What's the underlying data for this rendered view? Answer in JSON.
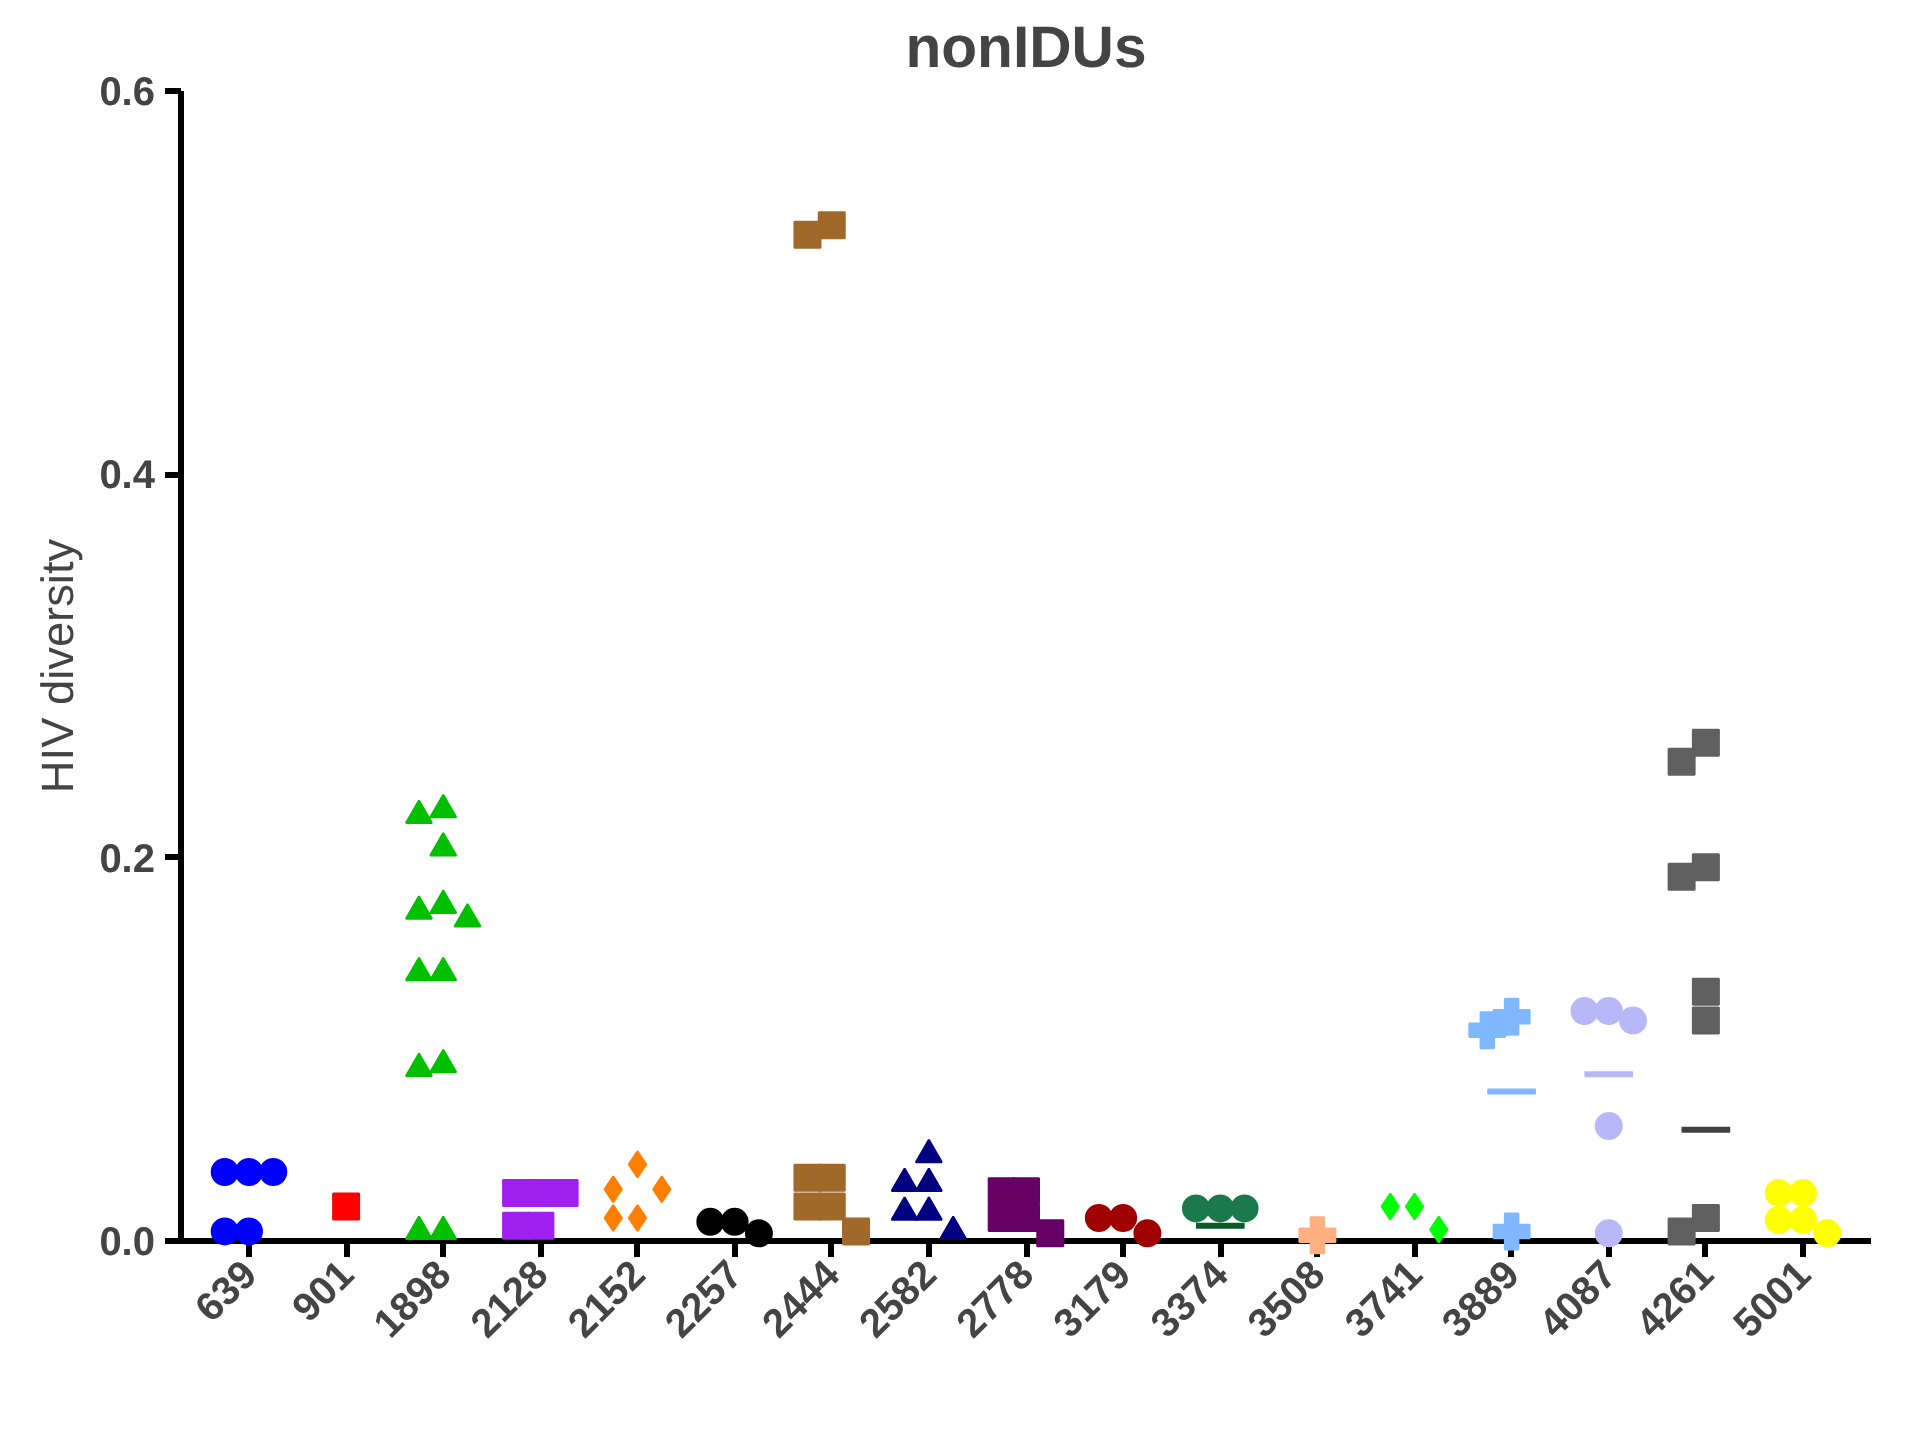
{
  "chart_data": {
    "type": "scatter",
    "title": "nonIDUs",
    "ylabel": "HIV diversity",
    "categories": [
      "639",
      "901",
      "1898",
      "2128",
      "2152",
      "2257",
      "2444",
      "2582",
      "2778",
      "3179",
      "3374",
      "3508",
      "3741",
      "3889",
      "4087",
      "4261",
      "5001"
    ],
    "ylim": [
      0,
      0.6
    ],
    "yticks": [
      {
        "value": 0,
        "label": "0.0"
      },
      {
        "value": 0.2,
        "label": "0.2"
      },
      {
        "value": 0.4,
        "label": "0.4"
      },
      {
        "value": 0.6,
        "label": "0.6"
      }
    ],
    "grid": false,
    "series": [
      {
        "marker": "circle",
        "values": [
          0.036,
          null,
          null,
          null,
          null,
          0.01,
          null,
          null,
          null,
          0.012,
          0.017,
          null,
          null,
          null,
          0.12,
          null,
          0.025
        ],
        "colors": [
          "#0000ff",
          null,
          null,
          null,
          null,
          "#000000",
          null,
          null,
          null,
          "#a00000",
          "#1a7a4c",
          null,
          null,
          null,
          "#b8b8f8",
          null,
          "#ffff00"
        ]
      },
      {
        "marker": "circle",
        "values": [
          0.036,
          null,
          null,
          null,
          null,
          0.01,
          null,
          null,
          null,
          0.012,
          0.017,
          null,
          null,
          null,
          0.12,
          null,
          0.025
        ],
        "colors": [
          "#0000ff",
          null,
          null,
          null,
          null,
          "#000000",
          null,
          null,
          null,
          "#a00000",
          "#1a7a4c",
          null,
          null,
          null,
          "#b8b8f8",
          null,
          "#ffff00"
        ]
      },
      {
        "marker": "circle",
        "values": [
          0.036,
          null,
          null,
          null,
          null,
          0.004,
          null,
          null,
          null,
          0.004,
          0.017,
          null,
          null,
          null,
          0.115,
          null,
          0.011
        ],
        "colors": [
          "#0000ff",
          null,
          null,
          null,
          null,
          "#000000",
          null,
          null,
          null,
          "#a00000",
          "#1a7a4c",
          null,
          null,
          null,
          "#b8b8f8",
          null,
          "#ffff00"
        ]
      },
      {
        "marker": "circle",
        "values": [
          0.005,
          null,
          null,
          null,
          null,
          null,
          null,
          null,
          null,
          null,
          null,
          null,
          null,
          null,
          0.06,
          null,
          0.011
        ],
        "colors": [
          "#0000ff",
          null,
          null,
          null,
          null,
          null,
          null,
          null,
          null,
          null,
          null,
          null,
          null,
          null,
          "#b8b8f8",
          null,
          "#ffff00"
        ]
      },
      {
        "marker": "circle",
        "values": [
          0.005,
          null,
          null,
          null,
          null,
          null,
          null,
          null,
          null,
          null,
          null,
          null,
          null,
          null,
          0.004,
          null,
          0.004
        ],
        "colors": [
          "#0000ff",
          null,
          null,
          null,
          null,
          null,
          null,
          null,
          null,
          null,
          null,
          null,
          null,
          null,
          "#b8b8f8",
          null,
          "#ffff00"
        ]
      },
      {
        "marker": "square",
        "values": [
          null,
          0.018,
          null,
          0.025,
          null,
          null,
          0.53,
          null,
          0.026,
          null,
          null,
          null,
          null,
          null,
          null,
          0.26,
          null
        ],
        "colors": [
          null,
          "#ff0000",
          null,
          "#a020f0",
          null,
          null,
          "#a0692a",
          null,
          "#660066",
          null,
          null,
          null,
          null,
          null,
          null,
          "#606060",
          null
        ]
      },
      {
        "marker": "square",
        "values": [
          null,
          null,
          null,
          0.025,
          null,
          null,
          0.525,
          null,
          0.026,
          null,
          null,
          null,
          null,
          null,
          null,
          0.25,
          null
        ],
        "colors": [
          null,
          null,
          null,
          "#a020f0",
          null,
          null,
          "#a0692a",
          null,
          "#660066",
          null,
          null,
          null,
          null,
          null,
          null,
          "#606060",
          null
        ]
      },
      {
        "marker": "square",
        "values": [
          null,
          null,
          null,
          0.025,
          null,
          null,
          0.033,
          null,
          0.012,
          null,
          null,
          null,
          null,
          null,
          null,
          0.195,
          null
        ],
        "colors": [
          null,
          null,
          null,
          "#a020f0",
          null,
          null,
          "#a0692a",
          null,
          "#660066",
          null,
          null,
          null,
          null,
          null,
          null,
          "#606060",
          null
        ]
      },
      {
        "marker": "square",
        "values": [
          null,
          null,
          null,
          0.008,
          null,
          null,
          0.033,
          null,
          0.012,
          null,
          null,
          null,
          null,
          null,
          null,
          0.19,
          null
        ],
        "colors": [
          null,
          null,
          null,
          "#a020f0",
          null,
          null,
          "#a0692a",
          null,
          "#660066",
          null,
          null,
          null,
          null,
          null,
          null,
          "#606060",
          null
        ]
      },
      {
        "marker": "square",
        "values": [
          null,
          null,
          null,
          0.008,
          null,
          null,
          0.018,
          null,
          0.004,
          null,
          null,
          null,
          null,
          null,
          null,
          0.13,
          null
        ],
        "colors": [
          null,
          null,
          null,
          "#a020f0",
          null,
          null,
          "#a0692a",
          null,
          "#660066",
          null,
          null,
          null,
          null,
          null,
          null,
          "#606060",
          null
        ]
      },
      {
        "marker": "square",
        "values": [
          null,
          null,
          null,
          null,
          null,
          null,
          0.018,
          null,
          null,
          null,
          null,
          null,
          null,
          null,
          null,
          0.115,
          null
        ],
        "colors": [
          null,
          null,
          null,
          null,
          null,
          null,
          "#a0692a",
          null,
          null,
          null,
          null,
          null,
          null,
          null,
          null,
          "#606060",
          null
        ]
      },
      {
        "marker": "square",
        "values": [
          null,
          null,
          null,
          null,
          null,
          null,
          0.005,
          null,
          null,
          null,
          null,
          null,
          null,
          null,
          null,
          0.012,
          null
        ],
        "colors": [
          null,
          null,
          null,
          null,
          null,
          null,
          "#a0692a",
          null,
          null,
          null,
          null,
          null,
          null,
          null,
          null,
          "#606060",
          null
        ]
      },
      {
        "marker": "square",
        "values": [
          null,
          null,
          null,
          null,
          null,
          null,
          null,
          null,
          null,
          null,
          null,
          null,
          null,
          null,
          null,
          0.005,
          null
        ],
        "color": "#606060"
      },
      {
        "marker": "triangle",
        "values": [
          null,
          null,
          0.225,
          null,
          null,
          null,
          null,
          0.045,
          null,
          null,
          null,
          null,
          null,
          null,
          null,
          null,
          null
        ],
        "colors": [
          null,
          null,
          "#00c000",
          null,
          null,
          null,
          null,
          "#000080",
          null,
          null,
          null,
          null,
          null,
          null,
          null,
          null,
          null
        ]
      },
      {
        "marker": "triangle",
        "values": [
          null,
          null,
          0.222,
          null,
          null,
          null,
          null,
          0.03,
          null,
          null,
          null,
          null,
          null,
          null,
          null,
          null,
          null
        ],
        "colors": [
          null,
          null,
          "#00c000",
          null,
          null,
          null,
          null,
          "#000080",
          null,
          null,
          null,
          null,
          null,
          null,
          null,
          null,
          null
        ]
      },
      {
        "marker": "triangle",
        "values": [
          null,
          null,
          0.205,
          null,
          null,
          null,
          null,
          0.03,
          null,
          null,
          null,
          null,
          null,
          null,
          null,
          null,
          null
        ],
        "colors": [
          null,
          null,
          "#00c000",
          null,
          null,
          null,
          null,
          "#000080",
          null,
          null,
          null,
          null,
          null,
          null,
          null,
          null,
          null
        ]
      },
      {
        "marker": "triangle",
        "values": [
          null,
          null,
          0.175,
          null,
          null,
          null,
          null,
          0.015,
          null,
          null,
          null,
          null,
          null,
          null,
          null,
          null,
          null
        ],
        "colors": [
          null,
          null,
          "#00c000",
          null,
          null,
          null,
          null,
          "#000080",
          null,
          null,
          null,
          null,
          null,
          null,
          null,
          null,
          null
        ]
      },
      {
        "marker": "triangle",
        "values": [
          null,
          null,
          0.172,
          null,
          null,
          null,
          null,
          0.015,
          null,
          null,
          null,
          null,
          null,
          null,
          null,
          null,
          null
        ],
        "colors": [
          null,
          null,
          "#00c000",
          null,
          null,
          null,
          null,
          "#000080",
          null,
          null,
          null,
          null,
          null,
          null,
          null,
          null,
          null
        ]
      },
      {
        "marker": "triangle",
        "values": [
          null,
          null,
          0.168,
          null,
          null,
          null,
          null,
          0.005,
          null,
          null,
          null,
          null,
          null,
          null,
          null,
          null,
          null
        ],
        "colors": [
          null,
          null,
          "#00c000",
          null,
          null,
          null,
          null,
          "#000080",
          null,
          null,
          null,
          null,
          null,
          null,
          null,
          null,
          null
        ]
      },
      {
        "marker": "triangle",
        "values": [
          null,
          null,
          0.14,
          null,
          null,
          null,
          null,
          null,
          null,
          null,
          null,
          null,
          null,
          null,
          null,
          null,
          null
        ],
        "color": "#00c000"
      },
      {
        "marker": "triangle",
        "values": [
          null,
          null,
          0.14,
          null,
          null,
          null,
          null,
          null,
          null,
          null,
          null,
          null,
          null,
          null,
          null,
          null,
          null
        ],
        "color": "#00c000"
      },
      {
        "marker": "triangle",
        "values": [
          null,
          null,
          0.092,
          null,
          null,
          null,
          null,
          null,
          null,
          null,
          null,
          null,
          null,
          null,
          null,
          null,
          null
        ],
        "color": "#00c000"
      },
      {
        "marker": "triangle",
        "values": [
          null,
          null,
          0.09,
          null,
          null,
          null,
          null,
          null,
          null,
          null,
          null,
          null,
          null,
          null,
          null,
          null,
          null
        ],
        "color": "#00c000"
      },
      {
        "marker": "triangle",
        "values": [
          null,
          null,
          0.005,
          null,
          null,
          null,
          null,
          null,
          null,
          null,
          null,
          null,
          null,
          null,
          null,
          null,
          null
        ],
        "color": "#00c000"
      },
      {
        "marker": "triangle",
        "values": [
          null,
          null,
          0.005,
          null,
          null,
          null,
          null,
          null,
          null,
          null,
          null,
          null,
          null,
          null,
          null,
          null,
          null
        ],
        "color": "#00c000"
      },
      {
        "marker": "diamond",
        "values": [
          null,
          null,
          null,
          null,
          0.04,
          null,
          null,
          null,
          null,
          null,
          null,
          null,
          0.018,
          null,
          null,
          null,
          null
        ],
        "colors": [
          null,
          null,
          null,
          null,
          "#ff8000",
          null,
          null,
          null,
          null,
          null,
          null,
          null,
          "#00ff00",
          null,
          null,
          null,
          null
        ]
      },
      {
        "marker": "diamond",
        "values": [
          null,
          null,
          null,
          null,
          0.027,
          null,
          null,
          null,
          null,
          null,
          null,
          null,
          0.018,
          null,
          null,
          null,
          null
        ],
        "colors": [
          null,
          null,
          null,
          null,
          "#ff8000",
          null,
          null,
          null,
          null,
          null,
          null,
          null,
          "#00ff00",
          null,
          null,
          null,
          null
        ]
      },
      {
        "marker": "diamond",
        "values": [
          null,
          null,
          null,
          null,
          0.027,
          null,
          null,
          null,
          null,
          null,
          null,
          null,
          0.006,
          null,
          null,
          null,
          null
        ],
        "colors": [
          null,
          null,
          null,
          null,
          "#ff8000",
          null,
          null,
          null,
          null,
          null,
          null,
          null,
          "#00ff00",
          null,
          null,
          null,
          null
        ]
      },
      {
        "marker": "diamond",
        "values": [
          null,
          null,
          null,
          null,
          0.012,
          null,
          null,
          null,
          null,
          null,
          null,
          null,
          null,
          null,
          null,
          null,
          null
        ],
        "color": "#ff8000"
      },
      {
        "marker": "diamond",
        "values": [
          null,
          null,
          null,
          null,
          0.012,
          null,
          null,
          null,
          null,
          null,
          null,
          null,
          null,
          null,
          null,
          null,
          null
        ],
        "color": "#ff8000"
      },
      {
        "marker": "cross",
        "values": [
          null,
          null,
          null,
          null,
          null,
          null,
          null,
          null,
          null,
          null,
          null,
          0.003,
          null,
          0.117,
          null,
          null,
          null
        ],
        "colors": [
          null,
          null,
          null,
          null,
          null,
          null,
          null,
          null,
          null,
          null,
          null,
          "#ffb080",
          null,
          "#80b8ff",
          null,
          null,
          null
        ]
      },
      {
        "marker": "cross",
        "values": [
          null,
          null,
          null,
          null,
          null,
          null,
          null,
          null,
          null,
          null,
          null,
          null,
          null,
          0.11,
          null,
          null,
          null
        ],
        "color": "#80b8ff"
      },
      {
        "marker": "cross",
        "values": [
          null,
          null,
          null,
          null,
          null,
          null,
          null,
          null,
          null,
          null,
          null,
          null,
          null,
          0.005,
          null,
          null,
          null
        ],
        "color": "#80b8ff"
      },
      {
        "type": "box",
        "boxes": [
          null,
          null,
          null,
          null,
          null,
          null,
          null,
          null,
          null,
          null,
          {
            "low": 0.008,
            "q1": 0.008,
            "median": 0.008,
            "q3": 0.008,
            "high": 0.008
          },
          null,
          null,
          {
            "low": 0.078,
            "q1": 0.078,
            "median": 0.078,
            "q3": 0.078,
            "high": 0.078
          },
          {
            "low": 0.087,
            "q1": 0.087,
            "median": 0.087,
            "q3": 0.087,
            "high": 0.087
          },
          {
            "low": 0.058,
            "q1": 0.058,
            "median": 0.058,
            "q3": 0.058,
            "high": 0.058
          },
          null
        ],
        "colors": [
          null,
          null,
          null,
          null,
          null,
          null,
          null,
          null,
          null,
          null,
          "#0a5a2a",
          null,
          null,
          "#80b8ff",
          "#b8b8f8",
          "#404040",
          null
        ]
      }
    ]
  }
}
